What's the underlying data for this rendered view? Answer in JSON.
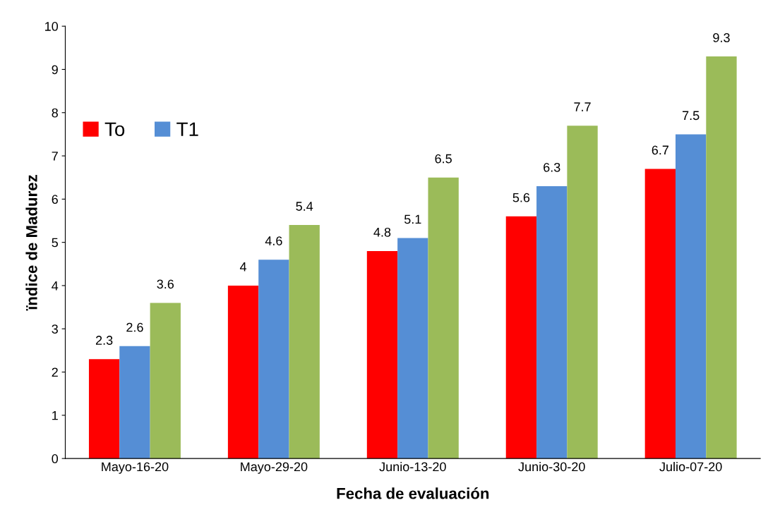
{
  "chart_data": {
    "type": "bar",
    "xlabel": "Fecha de evaluación",
    "ylabel": "ïndice de Madurez",
    "categories": [
      "Mayo-16-20",
      "Mayo-29-20",
      "Junio-13-20",
      "Junio-30-20",
      "Julio-07-20"
    ],
    "series": [
      {
        "name": "To",
        "color": "#ff0000",
        "values": [
          2.3,
          4,
          4.8,
          5.6,
          6.7
        ]
      },
      {
        "name": "T1",
        "color": "#558ed5",
        "values": [
          2.6,
          4.6,
          5.1,
          6.3,
          7.5
        ]
      },
      {
        "color": "#9bbb59",
        "values": [
          3.6,
          5.4,
          6.5,
          7.7,
          9.3
        ]
      }
    ],
    "ylim": [
      0,
      10
    ],
    "yticks": [
      0,
      1,
      2,
      3,
      4,
      5,
      6,
      7,
      8,
      9,
      10
    ],
    "data_labels": true,
    "grid": false,
    "legend": "top left"
  }
}
